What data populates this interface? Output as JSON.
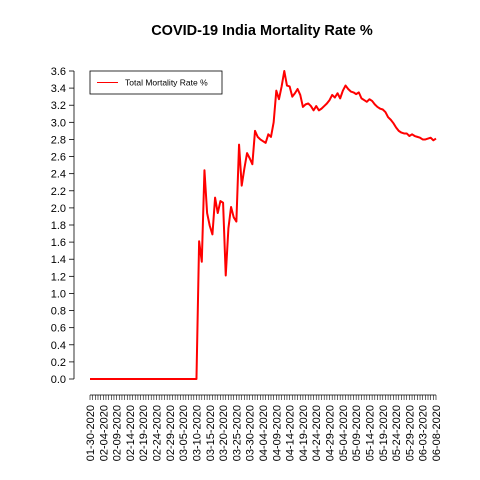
{
  "chart_data": {
    "type": "line",
    "title": "COVID-19 India Mortality Rate %",
    "xlabel": "",
    "ylabel": "",
    "ylim": [
      0.0,
      3.6
    ],
    "y_ticks": [
      "0.0",
      "0.2",
      "0.4",
      "0.6",
      "0.8",
      "1.0",
      "1.2",
      "1.4",
      "1.6",
      "1.8",
      "2.0",
      "2.2",
      "2.4",
      "2.6",
      "2.8",
      "3.0",
      "3.2",
      "3.4",
      "3.6"
    ],
    "x_range": [
      "2020-01-30",
      "2020-06-08"
    ],
    "x_tick_labels": [
      "01-30-2020",
      "02-04-2020",
      "02-09-2020",
      "02-14-2020",
      "02-19-2020",
      "02-24-2020",
      "02-29-2020",
      "03-05-2020",
      "03-10-2020",
      "03-15-2020",
      "03-20-2020",
      "03-25-2020",
      "03-30-2020",
      "04-04-2020",
      "04-09-2020",
      "04-14-2020",
      "04-19-2020",
      "04-24-2020",
      "04-29-2020",
      "05-04-2020",
      "05-09-2020",
      "05-14-2020",
      "05-19-2020",
      "05-24-2020",
      "05-29-2020",
      "06-03-2020",
      "06-08-2020"
    ],
    "legend": "top-left",
    "grid": false,
    "series": [
      {
        "name": "Total Mortality Rate %",
        "color": "#ff0000",
        "points": [
          [
            "2020-01-30",
            0.0
          ],
          [
            "2020-03-10",
            0.0
          ],
          [
            "2020-03-11",
            1.61
          ],
          [
            "2020-03-12",
            1.37
          ],
          [
            "2020-03-13",
            2.44
          ],
          [
            "2020-03-14",
            1.94
          ],
          [
            "2020-03-15",
            1.79
          ],
          [
            "2020-03-16",
            1.69
          ],
          [
            "2020-03-17",
            2.12
          ],
          [
            "2020-03-18",
            1.94
          ],
          [
            "2020-03-19",
            2.08
          ],
          [
            "2020-03-20",
            2.06
          ],
          [
            "2020-03-21",
            1.21
          ],
          [
            "2020-03-22",
            1.76
          ],
          [
            "2020-03-23",
            2.01
          ],
          [
            "2020-03-24",
            1.89
          ],
          [
            "2020-03-25",
            1.84
          ],
          [
            "2020-03-26",
            2.74
          ],
          [
            "2020-03-27",
            2.26
          ],
          [
            "2020-03-28",
            2.46
          ],
          [
            "2020-03-29",
            2.64
          ],
          [
            "2020-03-30",
            2.58
          ],
          [
            "2020-03-31",
            2.51
          ],
          [
            "2020-04-01",
            2.9
          ],
          [
            "2020-04-02",
            2.83
          ],
          [
            "2020-04-03",
            2.8
          ],
          [
            "2020-04-04",
            2.78
          ],
          [
            "2020-04-05",
            2.76
          ],
          [
            "2020-04-06",
            2.86
          ],
          [
            "2020-04-07",
            2.83
          ],
          [
            "2020-04-08",
            3.0
          ],
          [
            "2020-04-09",
            3.37
          ],
          [
            "2020-04-10",
            3.27
          ],
          [
            "2020-04-11",
            3.42
          ],
          [
            "2020-04-12",
            3.6
          ],
          [
            "2020-04-13",
            3.43
          ],
          [
            "2020-04-14",
            3.42
          ],
          [
            "2020-04-15",
            3.3
          ],
          [
            "2020-04-16",
            3.34
          ],
          [
            "2020-04-17",
            3.39
          ],
          [
            "2020-04-18",
            3.32
          ],
          [
            "2020-04-19",
            3.18
          ],
          [
            "2020-04-20",
            3.21
          ],
          [
            "2020-04-21",
            3.22
          ],
          [
            "2020-04-22",
            3.19
          ],
          [
            "2020-04-23",
            3.14
          ],
          [
            "2020-04-24",
            3.19
          ],
          [
            "2020-04-25",
            3.14
          ],
          [
            "2020-04-26",
            3.16
          ],
          [
            "2020-04-27",
            3.19
          ],
          [
            "2020-04-28",
            3.22
          ],
          [
            "2020-04-29",
            3.26
          ],
          [
            "2020-04-30",
            3.32
          ],
          [
            "2020-05-01",
            3.29
          ],
          [
            "2020-05-02",
            3.34
          ],
          [
            "2020-05-03",
            3.28
          ],
          [
            "2020-05-04",
            3.37
          ],
          [
            "2020-05-05",
            3.43
          ],
          [
            "2020-05-06",
            3.39
          ],
          [
            "2020-05-07",
            3.36
          ],
          [
            "2020-05-08",
            3.35
          ],
          [
            "2020-05-09",
            3.33
          ],
          [
            "2020-05-10",
            3.35
          ],
          [
            "2020-05-11",
            3.28
          ],
          [
            "2020-05-12",
            3.26
          ],
          [
            "2020-05-13",
            3.24
          ],
          [
            "2020-05-14",
            3.27
          ],
          [
            "2020-05-15",
            3.25
          ],
          [
            "2020-05-16",
            3.21
          ],
          [
            "2020-05-17",
            3.18
          ],
          [
            "2020-05-18",
            3.16
          ],
          [
            "2020-05-19",
            3.15
          ],
          [
            "2020-05-20",
            3.12
          ],
          [
            "2020-05-21",
            3.06
          ],
          [
            "2020-05-22",
            3.03
          ],
          [
            "2020-05-23",
            2.99
          ],
          [
            "2020-05-24",
            2.94
          ],
          [
            "2020-05-25",
            2.9
          ],
          [
            "2020-05-26",
            2.88
          ],
          [
            "2020-05-27",
            2.87
          ],
          [
            "2020-05-28",
            2.87
          ],
          [
            "2020-05-29",
            2.84
          ],
          [
            "2020-05-30",
            2.86
          ],
          [
            "2020-05-31",
            2.84
          ],
          [
            "2020-06-01",
            2.83
          ],
          [
            "2020-06-02",
            2.82
          ],
          [
            "2020-06-03",
            2.8
          ],
          [
            "2020-06-04",
            2.8
          ],
          [
            "2020-06-05",
            2.81
          ],
          [
            "2020-06-06",
            2.82
          ],
          [
            "2020-06-07",
            2.79
          ],
          [
            "2020-06-08",
            2.81
          ]
        ]
      }
    ]
  }
}
